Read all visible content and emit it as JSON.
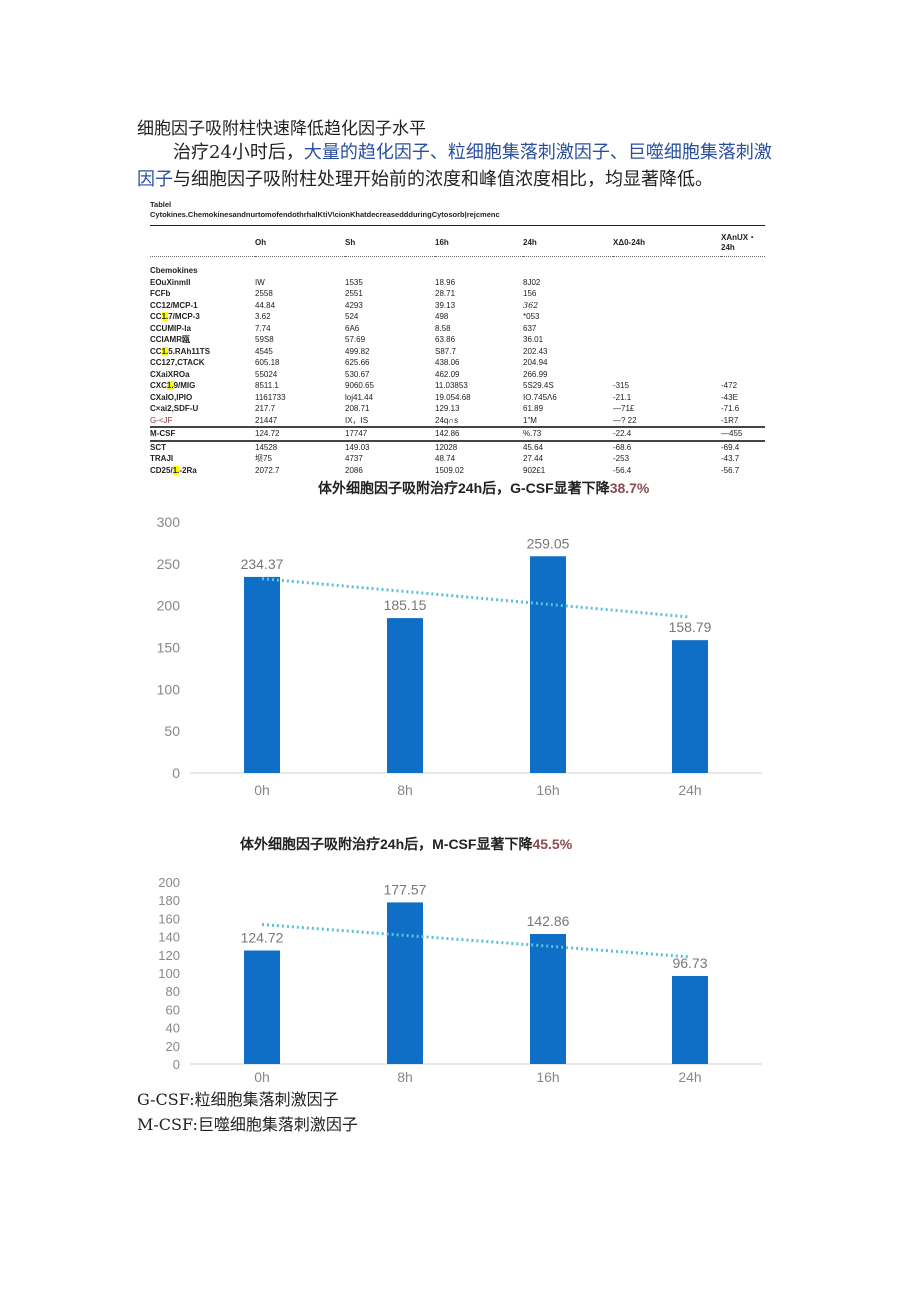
{
  "heading": "细胞因子吸附柱快速降低趋化因子水平",
  "paragraph": {
    "part1": "治疗24小时后，",
    "part2": "大量的趋化因子、粒细胞集落刺激因子、巨噬细胞集落刺激因子",
    "part3": "与细胞因子吸附柱处理开始前的浓度和峰值浓度相比，均显著降低。"
  },
  "table": {
    "label": "Tablel",
    "caption": "Cytokines.ChemokinesandnurtomofendothrhalKtiV\\cionKhatdecreaseddduringCytosorb|rejcmenc",
    "columns": [
      "",
      "Oh",
      "Sh",
      "16h",
      "24h",
      "XΔ0-24h",
      "XAnUX・24h"
    ],
    "section": "Cbemokines",
    "rows": [
      {
        "name": "EOuXinmll",
        "cells": [
          "IW",
          "1535",
          "18.96",
          "8J02",
          "",
          ""
        ]
      },
      {
        "name": "FCFb",
        "cells": [
          "2558",
          "2551",
          "28.71",
          "156",
          "",
          ""
        ]
      },
      {
        "name": "CC12/MCP-1",
        "cells": [
          "44.84",
          "4293",
          "39.13",
          "362",
          "",
          ""
        ]
      },
      {
        "name_pre": "CC",
        "name_hl": "1.",
        "name_post": "7/MCP-3",
        "cells": [
          "3.62",
          "524",
          "498",
          "*053",
          "",
          ""
        ]
      },
      {
        "name": "CCUMIP-la",
        "cells": [
          "7.74",
          "6A6",
          "8.58",
          "637",
          "",
          ""
        ]
      },
      {
        "name": "CCIAMR瓯",
        "cells": [
          "59S8",
          "57.69",
          "63.86",
          "36.01",
          "",
          ""
        ]
      },
      {
        "name_pre": "CC",
        "name_hl": "1.",
        "name_post": "5.RAh11TS",
        "cells": [
          "4545",
          "499.82",
          "S87.7",
          "202.43",
          "",
          ""
        ]
      },
      {
        "name": "CC127,CTACK",
        "cells": [
          "605.18",
          "625.66",
          "438.06",
          "204.94",
          "",
          ""
        ]
      },
      {
        "name": "CXaiXROa",
        "cells": [
          "55024",
          "530.67",
          "462.09",
          "266.99",
          "",
          ""
        ]
      },
      {
        "name_pre": "CXC",
        "name_hl": "1.",
        "name_post": "9/MIG",
        "cells": [
          "8511.1",
          "9060.65",
          "11.03853",
          "5S29.4S",
          "-315",
          "-472"
        ]
      },
      {
        "name": "CXaIO,IPIO",
        "cells": [
          "1161733",
          "loj41.44",
          "19.054.68",
          "IO.745Λ6",
          "-21.1",
          "-43E"
        ]
      },
      {
        "name": "C×ai2,SDF-U",
        "cells": [
          "217.7",
          "208.71",
          "129.13",
          "61.89",
          "—71£",
          "-71.6"
        ]
      },
      {
        "name": "G-<JF",
        "cls": "gcsf",
        "cells": [
          "21447",
          "IX，IS",
          "24q∩s",
          "1\"M",
          "—? 22",
          "-1R7"
        ]
      },
      {
        "name": "M-CSF",
        "cls": "mcsf",
        "cells": [
          "124.72",
          "17747",
          "142.86",
          "%.73",
          "-22.4",
          "—455"
        ]
      },
      {
        "name": "SCT",
        "cells": [
          "14528",
          "149.03",
          "12028",
          "45.64",
          "-68.6",
          "-69.4"
        ]
      },
      {
        "name": "TRAJI",
        "cells": [
          "坝75",
          "4737",
          "48.74",
          "27.44",
          "-253",
          "-43.7"
        ]
      },
      {
        "name_pre": "CD25/",
        "name_hl": "1.",
        "name_post": "-2Ra",
        "cells": [
          "2072.7",
          "2086",
          "1509.02",
          "902£1",
          "-56.4",
          "-56.7"
        ]
      }
    ]
  },
  "chart_data": [
    {
      "type": "bar",
      "title": "体外细胞因子吸附治疗24h后，G-CSF显著下降",
      "title_highlight": "38.7%",
      "categories": [
        "0h",
        "8h",
        "16h",
        "24h"
      ],
      "values": [
        234.37,
        185.15,
        259.05,
        158.79
      ],
      "value_labels": [
        "234.37",
        "185.15",
        "259.05",
        "158.79"
      ],
      "yticks": [
        "0",
        "50",
        "100",
        "150",
        "200",
        "250",
        "300"
      ],
      "ylim": [
        0,
        300
      ],
      "trendline": "linear",
      "grid": false,
      "bar_color": "#0f6fc6",
      "trend_color": "#5bc0d8"
    },
    {
      "type": "bar",
      "title": "体外细胞因子吸附治疗24h后，M-CSF显著下降",
      "title_highlight": "45.5%",
      "categories": [
        "0h",
        "8h",
        "16h",
        "24h"
      ],
      "values": [
        124.72,
        177.57,
        142.86,
        96.73
      ],
      "value_labels": [
        "124.72",
        "177.57",
        "142.86",
        "96.73"
      ],
      "yticks": [
        "0",
        "20",
        "40",
        "60",
        "80",
        "100",
        "120",
        "140",
        "160",
        "180",
        "200"
      ],
      "ylim": [
        0,
        200
      ],
      "trendline": "linear",
      "grid": false,
      "bar_color": "#0f6fc6",
      "trend_color": "#5bc0d8"
    }
  ],
  "footer": {
    "line1": "G-CSF:粒细胞集落刺激因子",
    "line2": "M-CSF:巨噬细胞集落刺激因子"
  }
}
